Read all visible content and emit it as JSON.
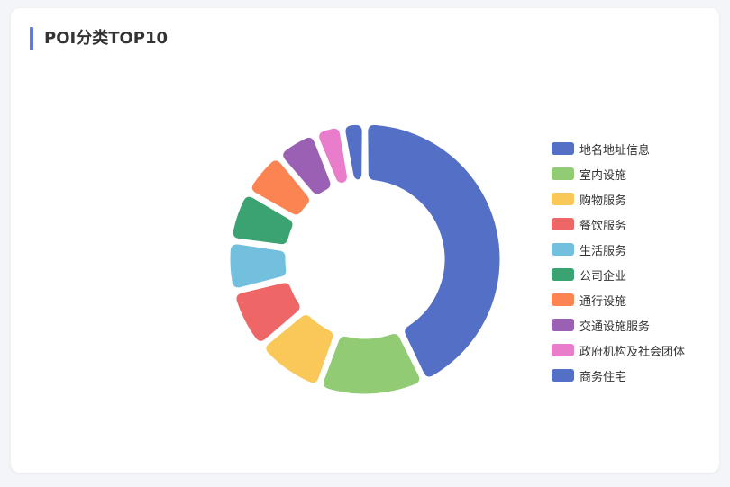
{
  "chart_data": {
    "type": "pie",
    "variant": "donut",
    "title": "POI分类TOP10",
    "categories": [
      "地名地址信息",
      "室内设施",
      "购物服务",
      "餐饮服务",
      "生活服务",
      "公司企业",
      "通行设施",
      "交通设施服务",
      "政府机构及社会团体",
      "商务住宅"
    ],
    "values": [
      38.5,
      11.5,
      7.5,
      6.5,
      5.5,
      5.5,
      5.0,
      4.5,
      3.0,
      2.5
    ],
    "colors": [
      "#5470c6",
      "#91cc75",
      "#fac858",
      "#ee6666",
      "#73c0de",
      "#3ba272",
      "#fc8452",
      "#9a60b4",
      "#ea7ccc",
      "#5470c6"
    ],
    "legend_position": "right"
  }
}
